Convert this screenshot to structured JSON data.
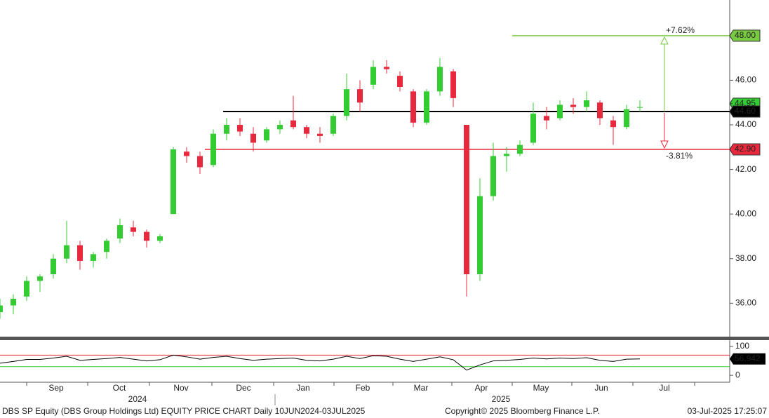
{
  "chart_data": [
    {
      "type": "candlestick",
      "open": [
        35.6,
        35.9,
        36.3,
        37.0,
        37.3,
        38.0,
        38.6,
        37.9,
        38.3,
        38.9,
        39.4,
        39.2,
        38.8,
        40.0,
        42.8,
        42.6,
        42.2,
        43.6,
        44.0,
        43.6,
        43.3,
        43.8,
        44.2,
        43.9,
        43.6,
        43.6,
        44.4,
        45.6,
        45.8,
        46.6,
        46.2,
        45.5,
        44.1,
        45.5,
        46.4,
        44.0,
        37.3,
        40.8,
        42.6,
        42.7,
        43.2,
        44.4,
        44.3,
        44.9,
        44.8,
        45.0,
        44.2,
        43.9,
        44.8
      ],
      "high": [
        36.2,
        36.4,
        37.2,
        37.3,
        38.2,
        39.7,
        38.8,
        38.3,
        38.9,
        39.8,
        39.7,
        39.3,
        39.1,
        43.0,
        43.0,
        42.8,
        43.8,
        44.3,
        44.3,
        43.9,
        43.9,
        44.2,
        45.3,
        44.0,
        43.9,
        44.5,
        46.3,
        46.0,
        46.9,
        46.9,
        46.4,
        45.6,
        45.6,
        47.0,
        46.5,
        44.0,
        41.6,
        43.2,
        43.0,
        43.3,
        45.0,
        44.8,
        45.1,
        45.2,
        45.5,
        45.1,
        44.4,
        44.9,
        45.1
      ],
      "low": [
        35.3,
        35.5,
        36.1,
        36.5,
        37.1,
        37.8,
        37.5,
        37.6,
        38.0,
        38.7,
        39.0,
        38.5,
        38.7,
        40.0,
        42.3,
        41.8,
        42.1,
        43.3,
        43.5,
        42.8,
        43.2,
        43.6,
        43.8,
        43.4,
        43.2,
        43.5,
        44.2,
        44.6,
        45.6,
        46.3,
        45.5,
        43.9,
        44.0,
        45.3,
        44.8,
        36.3,
        37.0,
        40.6,
        41.9,
        42.6,
        43.1,
        43.8,
        44.2,
        44.5,
        44.6,
        44.0,
        43.1,
        43.8,
        44.6
      ],
      "close": [
        35.9,
        36.2,
        37.0,
        37.2,
        38.0,
        38.6,
        37.9,
        38.2,
        38.8,
        39.5,
        39.2,
        38.8,
        39.0,
        42.9,
        42.6,
        42.1,
        43.6,
        44.0,
        43.7,
        43.2,
        43.8,
        44.0,
        43.9,
        43.6,
        43.5,
        44.4,
        45.6,
        45.0,
        46.6,
        46.5,
        45.7,
        44.1,
        45.5,
        46.6,
        45.2,
        37.3,
        40.8,
        42.6,
        42.7,
        43.1,
        44.5,
        44.2,
        44.9,
        44.8,
        45.1,
        44.3,
        43.9,
        44.7,
        44.8
      ],
      "up_color": "#33cc33",
      "down_color": "#e8283c",
      "ylim": [
        34.5,
        49.6
      ],
      "yticks": [
        {
          "value": 36,
          "label": "36.00"
        },
        {
          "value": 38,
          "label": "38.00"
        },
        {
          "value": 40,
          "label": "40.00"
        },
        {
          "value": 42,
          "label": "42.00"
        },
        {
          "value": 44,
          "label": "44.00"
        },
        {
          "value": 46,
          "label": "46.00"
        }
      ],
      "levels": [
        {
          "value": 48,
          "label": "48.00",
          "color": "#7ac943"
        },
        {
          "value": 44.6,
          "label": "44.60",
          "color": "#000000"
        },
        {
          "value": 42.9,
          "label": "42.90",
          "color": "#e8283c"
        }
      ],
      "last_price": {
        "value": 44.95,
        "label": "44.95"
      },
      "annotations": [
        "+7.62%",
        "-3.81%"
      ]
    },
    {
      "type": "line",
      "values": [
        42,
        48,
        55,
        55,
        60,
        66,
        52,
        55,
        58,
        62,
        56,
        50,
        54,
        70,
        64,
        56,
        62,
        66,
        58,
        52,
        56,
        58,
        60,
        52,
        50,
        56,
        66,
        58,
        68,
        66,
        56,
        48,
        56,
        64,
        54,
        18,
        36,
        50,
        52,
        55,
        60,
        57,
        60,
        58,
        61,
        52,
        48,
        56,
        56.942
      ],
      "color": "#000000",
      "ylim": [
        -24,
        119.5
      ],
      "yticks": [
        0,
        100
      ],
      "levels": [
        {
          "value": 70,
          "color": "#e8283c"
        },
        {
          "value": 30,
          "color": "#33cc33"
        }
      ]
    }
  ],
  "x_axis": {
    "months": [
      "Sep",
      "Oct",
      "Nov",
      "Dec",
      "Jan",
      "Feb",
      "Mar",
      "Apr",
      "May",
      "Jun",
      "Jul"
    ],
    "years": [
      "2024",
      "2025"
    ]
  },
  "footer": {
    "left": "DBS SP Equity (DBS Group Holdings Ltd) EQUITY PRICE CHART  Daily 10JUN2024-03JUL2025",
    "center": "Copyright© 2025 Bloomberg Finance L.P.",
    "right": "03-Jul-2025 17:25:07"
  }
}
